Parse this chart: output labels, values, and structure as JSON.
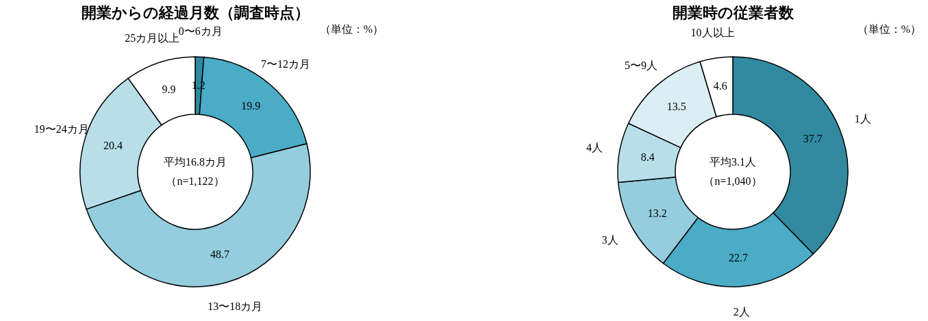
{
  "chart_data": [
    {
      "type": "donut",
      "title": "開業からの経過月数（調査時点）",
      "categories": [
        "0〜6カ月",
        "7〜12カ月",
        "13〜18カ月",
        "19〜24カ月",
        "25カ月以上"
      ],
      "values": [
        1.2,
        19.9,
        48.7,
        20.4,
        9.9
      ],
      "colors": [
        "#2e8aa0",
        "#4aacc6",
        "#94cddd",
        "#b8dfe9",
        "#ffffff"
      ],
      "data_labels": true,
      "legend": false,
      "annotations": [
        "（単位：%）",
        "平均16.8カ月",
        "（n=1,122）"
      ]
    },
    {
      "type": "donut",
      "title": "開業時の従業者数",
      "categories": [
        "1人",
        "2人",
        "3人",
        "4人",
        "5〜9人",
        "10人以上"
      ],
      "values": [
        37.7,
        22.7,
        13.2,
        8.4,
        13.5,
        4.6
      ],
      "colors": [
        "#318aa0",
        "#4aacc6",
        "#94cddd",
        "#b8dfe9",
        "#daeef4",
        "#ffffff"
      ],
      "data_labels": true,
      "legend": false,
      "annotations": [
        "（単位：%）",
        "平均3.1人",
        "（n=1,040）"
      ]
    }
  ]
}
